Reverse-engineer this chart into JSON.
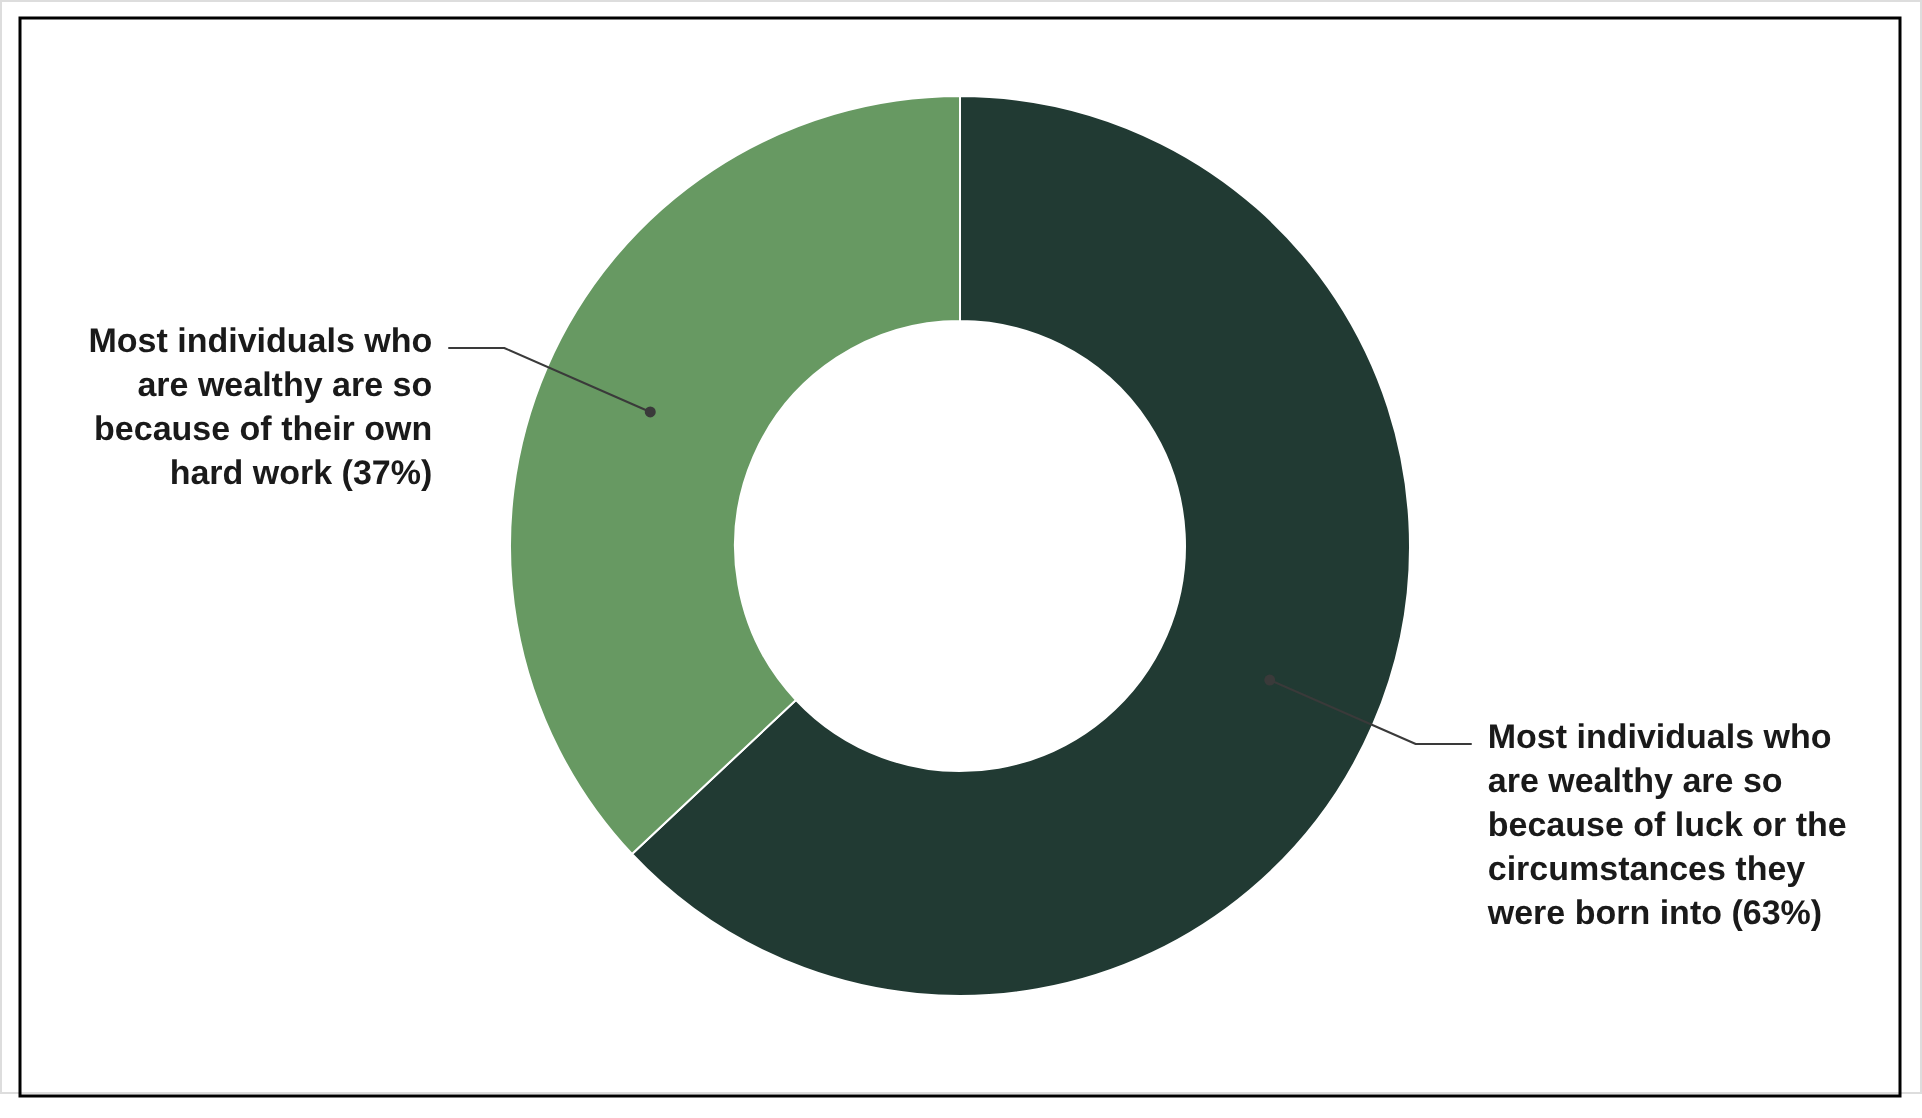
{
  "chart_data": {
    "type": "donut",
    "categories": [
      "Most individuals who are wealthy are so because of luck or the circumstances they were born into",
      "Most individuals who are wealthy are so because of their own hard work"
    ],
    "values": [
      63,
      37
    ],
    "colors": [
      "#213a33",
      "#679962"
    ],
    "value_labels": [
      "(63%)",
      "(37%)"
    ]
  }
}
